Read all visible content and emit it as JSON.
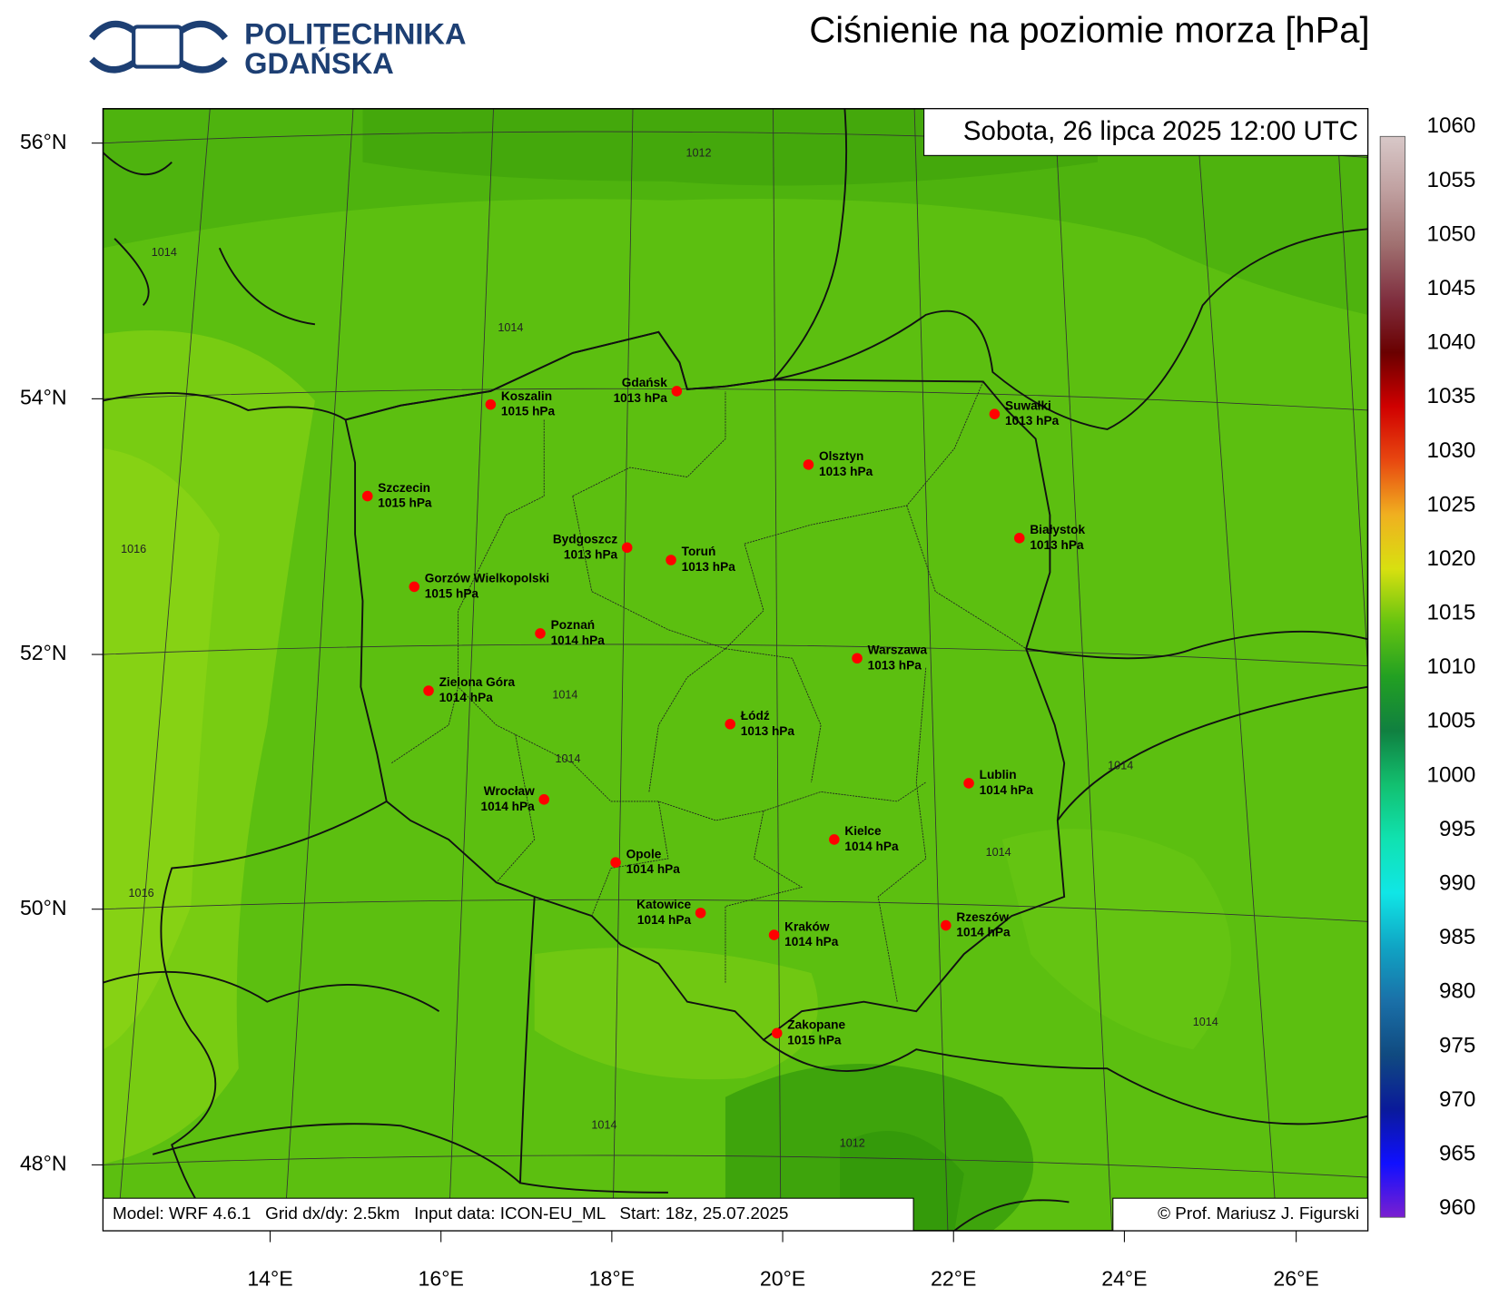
{
  "header": {
    "logo_line1": "POLITECHNIKA",
    "logo_line2": "GDAŃSKA",
    "title": "Ciśnienie na poziomie morza [hPa]"
  },
  "map": {
    "valid_time": "Sobota, 26 lipca 2025 12:00 UTC",
    "latitude_labels": [
      "56°N",
      "54°N",
      "52°N",
      "50°N",
      "48°N"
    ],
    "longitude_labels": [
      "14°E",
      "16°E",
      "18°E",
      "20°E",
      "22°E",
      "24°E",
      "26°E"
    ],
    "cities": [
      {
        "name": "Koszalin",
        "pressure": "1015 hPa"
      },
      {
        "name": "Gdańsk",
        "pressure": "1013 hPa"
      },
      {
        "name": "Szczecin",
        "pressure": "1015 hPa"
      },
      {
        "name": "Suwałki",
        "pressure": "1013 hPa"
      },
      {
        "name": "Olsztyn",
        "pressure": "1013 hPa"
      },
      {
        "name": "Bydgoszcz",
        "pressure": "1013 hPa"
      },
      {
        "name": "Toruń",
        "pressure": "1013 hPa"
      },
      {
        "name": "Białystok",
        "pressure": "1013 hPa"
      },
      {
        "name": "Gorzów Wielkopolski",
        "pressure": "1015 hPa"
      },
      {
        "name": "Poznań",
        "pressure": "1014 hPa"
      },
      {
        "name": "Warszawa",
        "pressure": "1013 hPa"
      },
      {
        "name": "Zielona Góra",
        "pressure": "1014 hPa"
      },
      {
        "name": "Łódź",
        "pressure": "1013 hPa"
      },
      {
        "name": "Lublin",
        "pressure": "1014 hPa"
      },
      {
        "name": "Wrocław",
        "pressure": "1014 hPa"
      },
      {
        "name": "Kielce",
        "pressure": "1014 hPa"
      },
      {
        "name": "Opole",
        "pressure": "1014 hPa"
      },
      {
        "name": "Katowice",
        "pressure": "1014 hPa"
      },
      {
        "name": "Kraków",
        "pressure": "1014 hPa"
      },
      {
        "name": "Rzeszów",
        "pressure": "1014 hPa"
      },
      {
        "name": "Zakopane",
        "pressure": "1015 hPa"
      }
    ],
    "contour_labels": [
      "1012",
      "1014",
      "1014",
      "1016",
      "1014",
      "1014",
      "1014",
      "1014",
      "1016",
      "1014",
      "1014",
      "1012"
    ],
    "footer": {
      "model_info": "Model: WRF 4.6.1   Grid dx/dy: 2.5km   Input data: ICON-EU_ML   Start: 18z, 25.07.2025",
      "copyright": "© Prof. Mariusz J. Figurski"
    }
  },
  "colorbar": {
    "ticks": [
      1060,
      1055,
      1050,
      1045,
      1040,
      1035,
      1030,
      1025,
      1020,
      1015,
      1010,
      1005,
      1000,
      995,
      990,
      985,
      980,
      975,
      970,
      965,
      960
    ]
  }
}
